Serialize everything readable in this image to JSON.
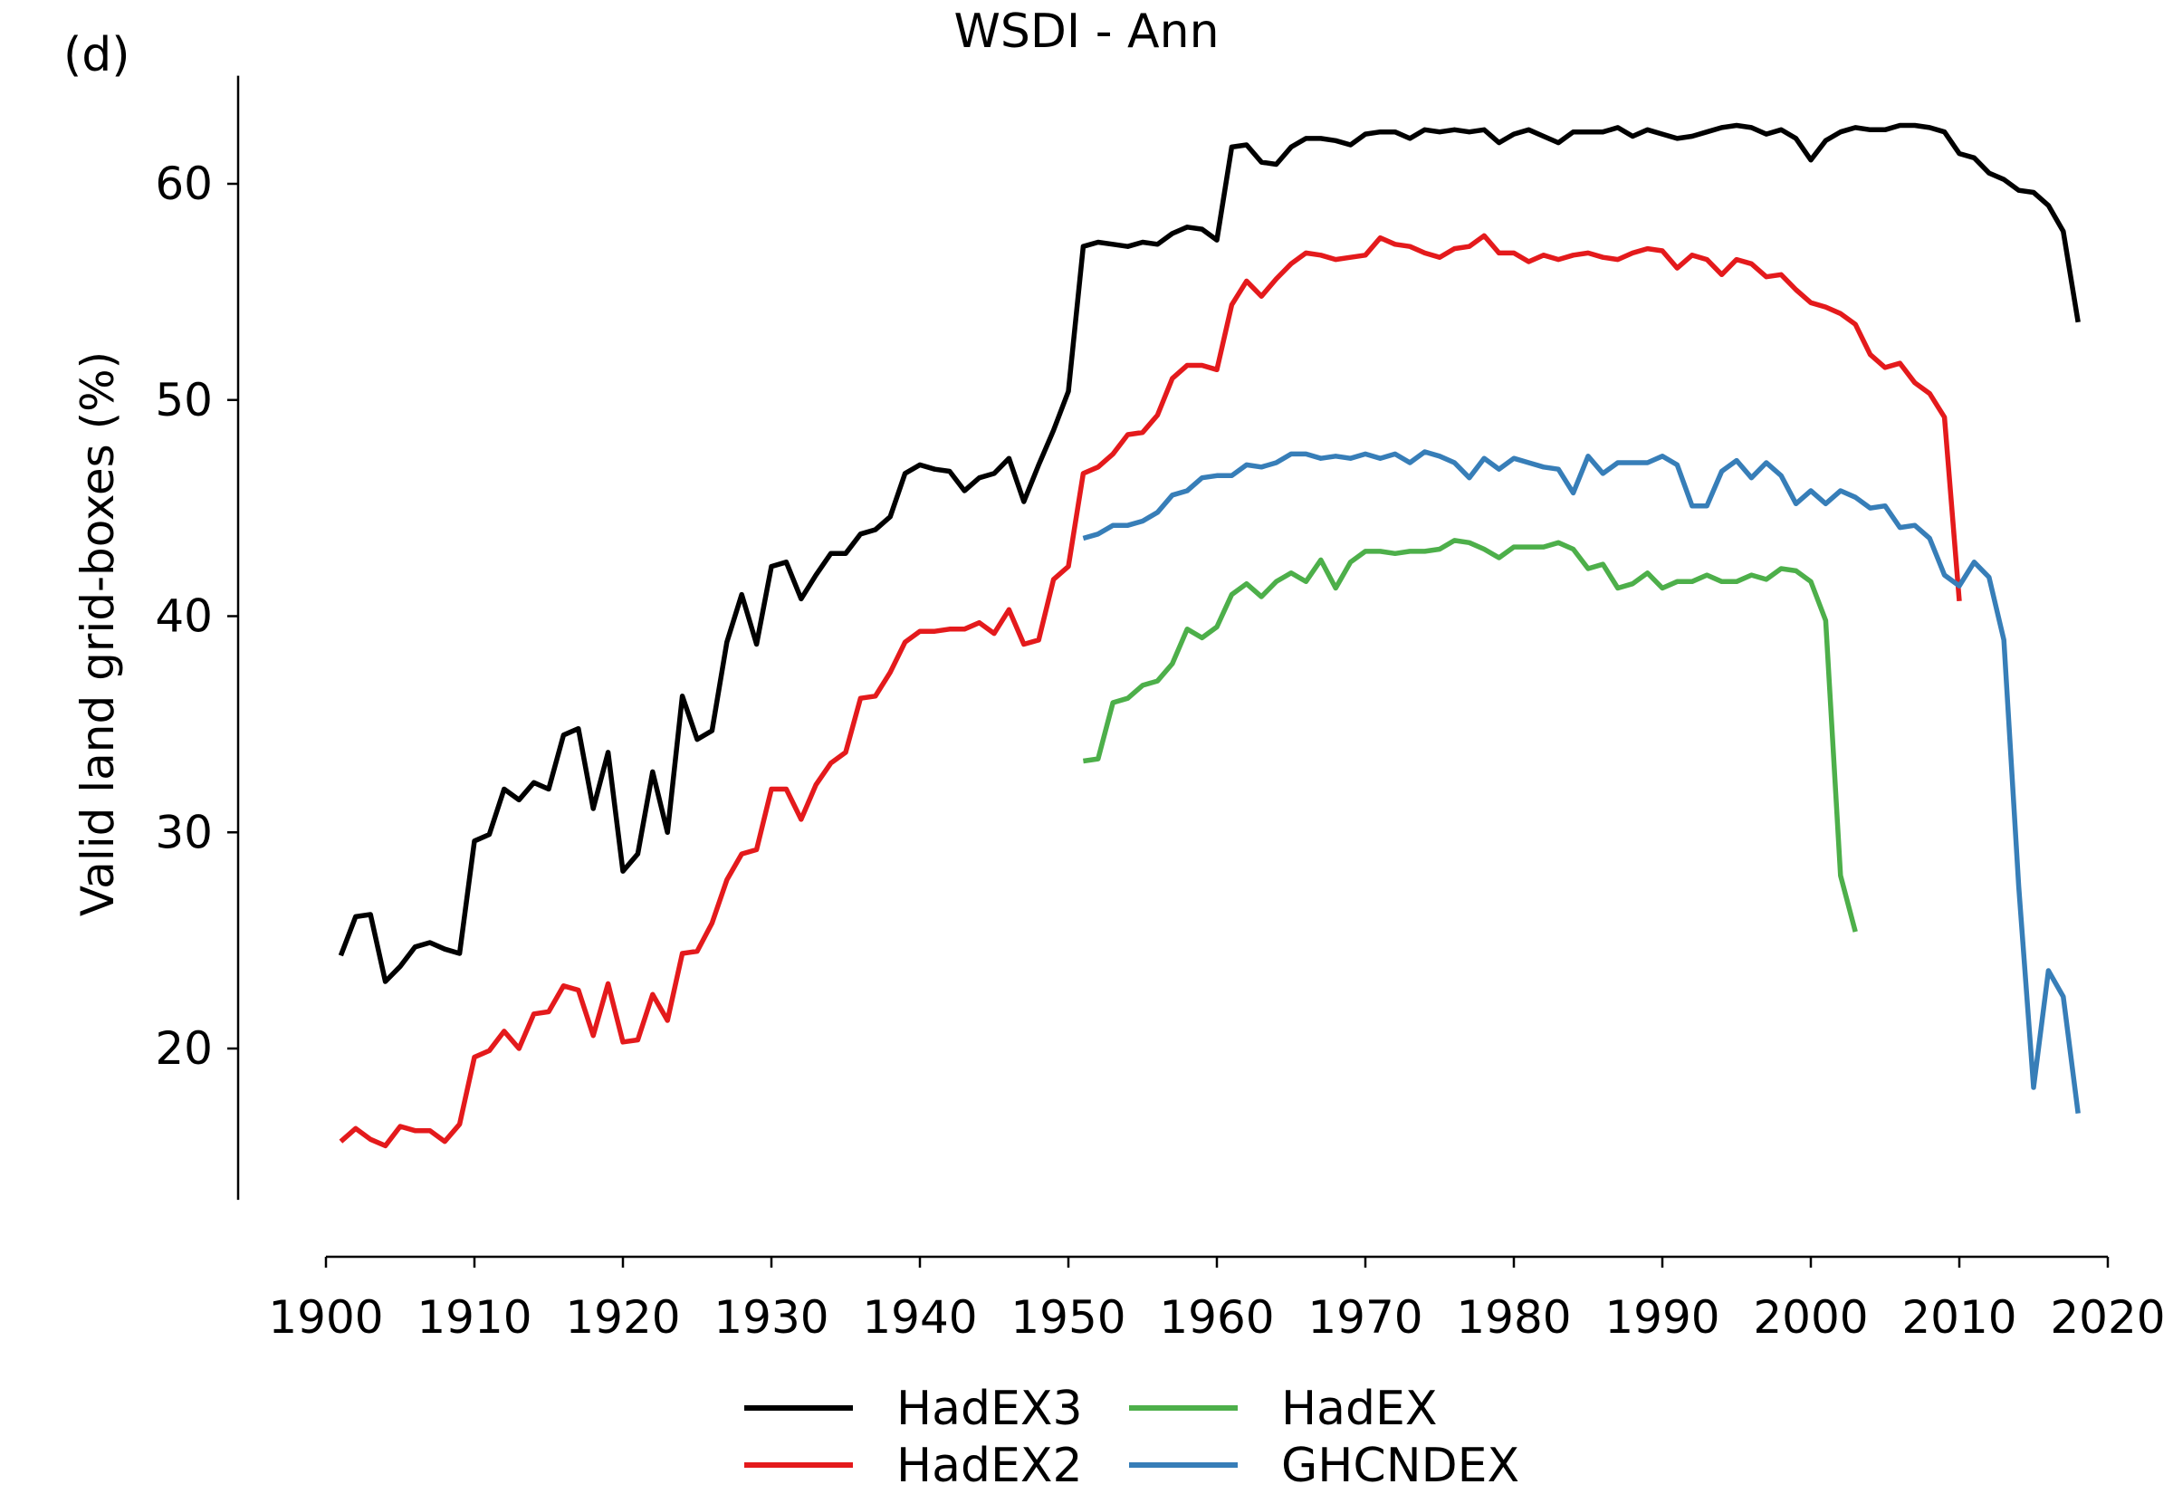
{
  "panel_label": "(d)",
  "chart_data": {
    "type": "line",
    "title": "WSDI - Ann",
    "xlabel": "",
    "ylabel": "Valid land grid-boxes (%)",
    "xlim": [
      1900,
      2020
    ],
    "ylim": [
      13,
      65
    ],
    "xticks": [
      1900,
      1910,
      1920,
      1930,
      1940,
      1950,
      1960,
      1970,
      1980,
      1990,
      2000,
      2010,
      2020
    ],
    "yticks": [
      20,
      30,
      40,
      50,
      60
    ],
    "grid": false,
    "legend": "bottom-center",
    "series": [
      {
        "name": "HadEX3",
        "color": "#000000",
        "x": [
          1901,
          1902,
          1903,
          1904,
          1905,
          1906,
          1907,
          1908,
          1909,
          1910,
          1911,
          1912,
          1913,
          1914,
          1915,
          1916,
          1917,
          1918,
          1919,
          1920,
          1921,
          1922,
          1923,
          1924,
          1925,
          1926,
          1927,
          1928,
          1929,
          1930,
          1931,
          1932,
          1933,
          1934,
          1935,
          1936,
          1937,
          1938,
          1939,
          1940,
          1941,
          1942,
          1943,
          1944,
          1945,
          1946,
          1947,
          1948,
          1949,
          1950,
          1951,
          1952,
          1953,
          1954,
          1955,
          1956,
          1957,
          1958,
          1959,
          1960,
          1961,
          1962,
          1963,
          1964,
          1965,
          1966,
          1967,
          1968,
          1969,
          1970,
          1971,
          1972,
          1973,
          1974,
          1975,
          1976,
          1977,
          1978,
          1979,
          1980,
          1981,
          1982,
          1983,
          1984,
          1985,
          1986,
          1987,
          1988,
          1989,
          1990,
          1991,
          1992,
          1993,
          1994,
          1995,
          1996,
          1997,
          1998,
          1999,
          2000,
          2001,
          2002,
          2003,
          2004,
          2005,
          2006,
          2007,
          2008,
          2009,
          2010,
          2011,
          2012,
          2013,
          2014,
          2015,
          2016,
          2017,
          2018
        ],
        "y": [
          24.3,
          26.1,
          26.2,
          23.1,
          23.8,
          24.7,
          24.9,
          24.6,
          24.4,
          29.6,
          29.9,
          32.0,
          31.5,
          32.3,
          32.0,
          34.5,
          34.8,
          31.1,
          33.7,
          28.2,
          29.0,
          32.8,
          30.0,
          36.3,
          34.3,
          34.7,
          38.8,
          41.0,
          38.7,
          42.3,
          42.5,
          40.8,
          41.9,
          42.9,
          42.9,
          43.8,
          44.0,
          44.6,
          46.6,
          47.0,
          46.8,
          46.7,
          45.8,
          46.4,
          46.6,
          47.3,
          45.3,
          47.0,
          48.6,
          50.4,
          57.1,
          57.3,
          57.2,
          57.1,
          57.3,
          57.2,
          57.7,
          58.0,
          57.9,
          57.4,
          61.7,
          61.8,
          61.0,
          60.9,
          61.7,
          62.1,
          62.1,
          62.0,
          61.8,
          62.3,
          62.4,
          62.4,
          62.1,
          62.5,
          62.4,
          62.5,
          62.4,
          62.5,
          61.9,
          62.3,
          62.5,
          62.2,
          61.9,
          62.4,
          62.4,
          62.4,
          62.6,
          62.2,
          62.5,
          62.3,
          62.1,
          62.2,
          62.4,
          62.6,
          62.7,
          62.6,
          62.3,
          62.5,
          62.1,
          61.1,
          62.0,
          62.4,
          62.6,
          62.5,
          62.5,
          62.7,
          62.7,
          62.6,
          62.4,
          61.4,
          61.2,
          60.5,
          60.2,
          59.7,
          59.6,
          59.0,
          57.8,
          53.6
        ]
      },
      {
        "name": "HadEX2",
        "color": "#e41a1c",
        "x": [
          1901,
          1902,
          1903,
          1904,
          1905,
          1906,
          1907,
          1908,
          1909,
          1910,
          1911,
          1912,
          1913,
          1914,
          1915,
          1916,
          1917,
          1918,
          1919,
          1920,
          1921,
          1922,
          1923,
          1924,
          1925,
          1926,
          1927,
          1928,
          1929,
          1930,
          1931,
          1932,
          1933,
          1934,
          1935,
          1936,
          1937,
          1938,
          1939,
          1940,
          1941,
          1942,
          1943,
          1944,
          1945,
          1946,
          1947,
          1948,
          1949,
          1950,
          1951,
          1952,
          1953,
          1954,
          1955,
          1956,
          1957,
          1958,
          1959,
          1960,
          1961,
          1962,
          1963,
          1964,
          1965,
          1966,
          1967,
          1968,
          1969,
          1970,
          1971,
          1972,
          1973,
          1974,
          1975,
          1976,
          1977,
          1978,
          1979,
          1980,
          1981,
          1982,
          1983,
          1984,
          1985,
          1986,
          1987,
          1988,
          1989,
          1990,
          1991,
          1992,
          1993,
          1994,
          1995,
          1996,
          1997,
          1998,
          1999,
          2000,
          2001,
          2002,
          2003,
          2004,
          2005,
          2006,
          2007,
          2008,
          2009,
          2010
        ],
        "y": [
          15.7,
          16.3,
          15.8,
          15.5,
          16.4,
          16.2,
          16.2,
          15.7,
          16.5,
          19.6,
          19.9,
          20.8,
          20.0,
          21.6,
          21.7,
          22.9,
          22.7,
          20.6,
          23.0,
          20.3,
          20.4,
          22.5,
          21.3,
          24.4,
          24.5,
          25.8,
          27.8,
          29.0,
          29.2,
          32.0,
          32.0,
          30.6,
          32.2,
          33.2,
          33.7,
          36.2,
          36.3,
          37.4,
          38.8,
          39.3,
          39.3,
          39.4,
          39.4,
          39.7,
          39.2,
          40.3,
          38.7,
          38.9,
          41.7,
          42.3,
          46.6,
          46.9,
          47.5,
          48.4,
          48.5,
          49.3,
          51.0,
          51.6,
          51.6,
          51.4,
          54.4,
          55.5,
          54.8,
          55.6,
          56.3,
          56.8,
          56.7,
          56.5,
          56.6,
          56.7,
          57.5,
          57.2,
          57.1,
          56.8,
          56.6,
          57.0,
          57.1,
          57.6,
          56.8,
          56.8,
          56.4,
          56.7,
          56.5,
          56.7,
          56.8,
          56.6,
          56.5,
          56.8,
          57.0,
          56.9,
          56.1,
          56.7,
          56.5,
          55.8,
          56.5,
          56.3,
          55.7,
          55.8,
          55.1,
          54.5,
          54.3,
          54.0,
          53.5,
          52.1,
          51.5,
          51.7,
          50.8,
          50.3,
          49.2,
          40.7
        ]
      },
      {
        "name": "HadEX",
        "color": "#4daf4a",
        "x": [
          1951,
          1952,
          1953,
          1954,
          1955,
          1956,
          1957,
          1958,
          1959,
          1960,
          1961,
          1962,
          1963,
          1964,
          1965,
          1966,
          1967,
          1968,
          1969,
          1970,
          1971,
          1972,
          1973,
          1974,
          1975,
          1976,
          1977,
          1978,
          1979,
          1980,
          1981,
          1982,
          1983,
          1984,
          1985,
          1986,
          1987,
          1988,
          1989,
          1990,
          1991,
          1992,
          1993,
          1994,
          1995,
          1996,
          1997,
          1998,
          1999,
          2000,
          2001,
          2002,
          2003
        ],
        "y": [
          33.3,
          33.4,
          36.0,
          36.2,
          36.8,
          37.0,
          37.8,
          39.4,
          39.0,
          39.5,
          41.0,
          41.5,
          40.9,
          41.6,
          42.0,
          41.6,
          42.6,
          41.3,
          42.5,
          43.0,
          43.0,
          42.9,
          43.0,
          43.0,
          43.1,
          43.5,
          43.4,
          43.1,
          42.7,
          43.2,
          43.2,
          43.2,
          43.4,
          43.1,
          42.2,
          42.4,
          41.3,
          41.5,
          42.0,
          41.3,
          41.6,
          41.6,
          41.9,
          41.6,
          41.6,
          41.9,
          41.7,
          42.2,
          42.1,
          41.6,
          39.8,
          28.0,
          25.4
        ]
      },
      {
        "name": "GHCNDEX",
        "color": "#377eb8",
        "x": [
          1951,
          1952,
          1953,
          1954,
          1955,
          1956,
          1957,
          1958,
          1959,
          1960,
          1961,
          1962,
          1963,
          1964,
          1965,
          1966,
          1967,
          1968,
          1969,
          1970,
          1971,
          1972,
          1973,
          1974,
          1975,
          1976,
          1977,
          1978,
          1979,
          1980,
          1981,
          1982,
          1983,
          1984,
          1985,
          1986,
          1987,
          1988,
          1989,
          1990,
          1991,
          1992,
          1993,
          1994,
          1995,
          1996,
          1997,
          1998,
          1999,
          2000,
          2001,
          2002,
          2003,
          2004,
          2005,
          2006,
          2007,
          2008,
          2009,
          2010,
          2011,
          2012,
          2013,
          2014,
          2015,
          2016,
          2017,
          2018
        ],
        "y": [
          43.6,
          43.8,
          44.2,
          44.2,
          44.4,
          44.8,
          45.6,
          45.8,
          46.4,
          46.5,
          46.5,
          47.0,
          46.9,
          47.1,
          47.5,
          47.5,
          47.3,
          47.4,
          47.3,
          47.5,
          47.3,
          47.5,
          47.1,
          47.6,
          47.4,
          47.1,
          46.4,
          47.3,
          46.8,
          47.3,
          47.1,
          46.9,
          46.8,
          45.7,
          47.4,
          46.6,
          47.1,
          47.1,
          47.1,
          47.4,
          47.0,
          45.1,
          45.1,
          46.7,
          47.2,
          46.4,
          47.1,
          46.5,
          45.2,
          45.8,
          45.2,
          45.8,
          45.5,
          45.0,
          45.1,
          44.1,
          44.2,
          43.6,
          41.9,
          41.4,
          42.5,
          41.8,
          38.9,
          27.5,
          18.2,
          23.6,
          22.4,
          17.0
        ]
      }
    ]
  }
}
